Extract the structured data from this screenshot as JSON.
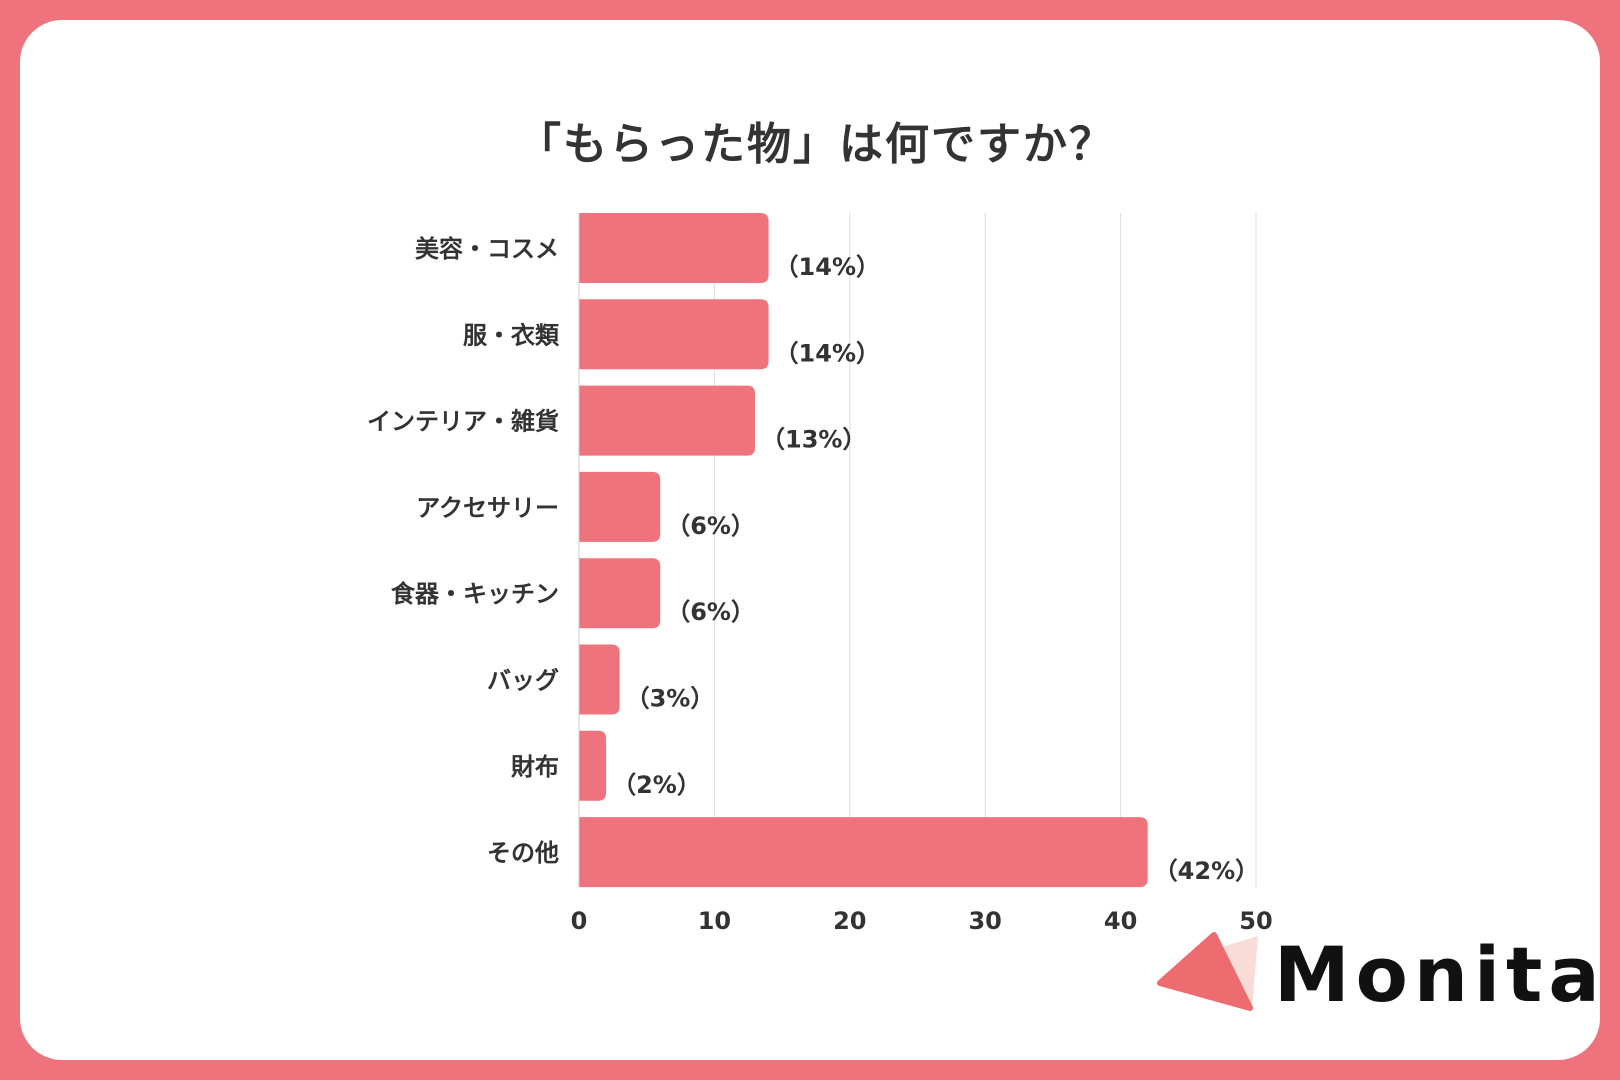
{
  "chart_data": {
    "type": "bar",
    "orientation": "horizontal",
    "title": "「もらった物」は何ですか？",
    "categories": [
      "美容・コスメ",
      "服・衣類",
      "インテリア・雑貨",
      "アクセサリー",
      "食器・キッチン",
      "バッグ",
      "財布",
      "その他"
    ],
    "values": [
      14,
      14,
      13,
      6,
      6,
      3,
      2,
      42
    ],
    "data_labels": [
      "（14%）",
      "（14%）",
      "（13%）",
      "（6%）",
      "（6%）",
      "（3%）",
      "（2%）",
      "（42%）"
    ],
    "xlim": [
      0,
      50
    ],
    "xticks": [
      "0",
      "10",
      "20",
      "30",
      "40",
      "50"
    ],
    "grid": true,
    "bar_color": "#EF737C"
  },
  "frame_color": "#EF737C",
  "logo": {
    "text": "Monita"
  }
}
